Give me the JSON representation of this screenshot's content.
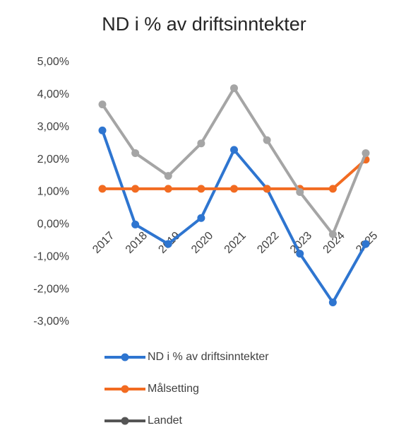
{
  "chart_data": {
    "type": "line",
    "title": "ND i % av driftsinntekter",
    "categories": [
      "2017",
      "2018",
      "2019",
      "2020",
      "2021",
      "2022",
      "2023",
      "2024",
      "2025"
    ],
    "series": [
      {
        "name": "ND i % av driftsinntekter",
        "color": "#2e75d0",
        "values": [
          2.9,
          0.0,
          -0.6,
          0.2,
          2.3,
          1.1,
          -0.9,
          -2.4,
          -0.6
        ]
      },
      {
        "name": "Målsetting",
        "color": "#f26b21",
        "values": [
          1.1,
          1.1,
          1.1,
          1.1,
          1.1,
          1.1,
          1.1,
          1.1,
          2.0
        ]
      },
      {
        "name": "Landet",
        "color": "#a5a5a5",
        "values": [
          3.7,
          2.2,
          1.5,
          2.5,
          4.2,
          2.6,
          1.0,
          -0.3,
          2.2
        ]
      }
    ],
    "ylim": [
      -3,
      5
    ],
    "yticks": [
      {
        "value": 5,
        "label": "5,00%"
      },
      {
        "value": 4,
        "label": "4,00%"
      },
      {
        "value": 3,
        "label": "3,00%"
      },
      {
        "value": 2,
        "label": "2,00%"
      },
      {
        "value": 1,
        "label": "1,00%"
      },
      {
        "value": 0,
        "label": "0,00%"
      },
      {
        "value": -1,
        "label": "-1,00%"
      },
      {
        "value": -2,
        "label": "-2,00%"
      },
      {
        "value": -3,
        "label": "-3,00%"
      }
    ],
    "grid": false
  }
}
